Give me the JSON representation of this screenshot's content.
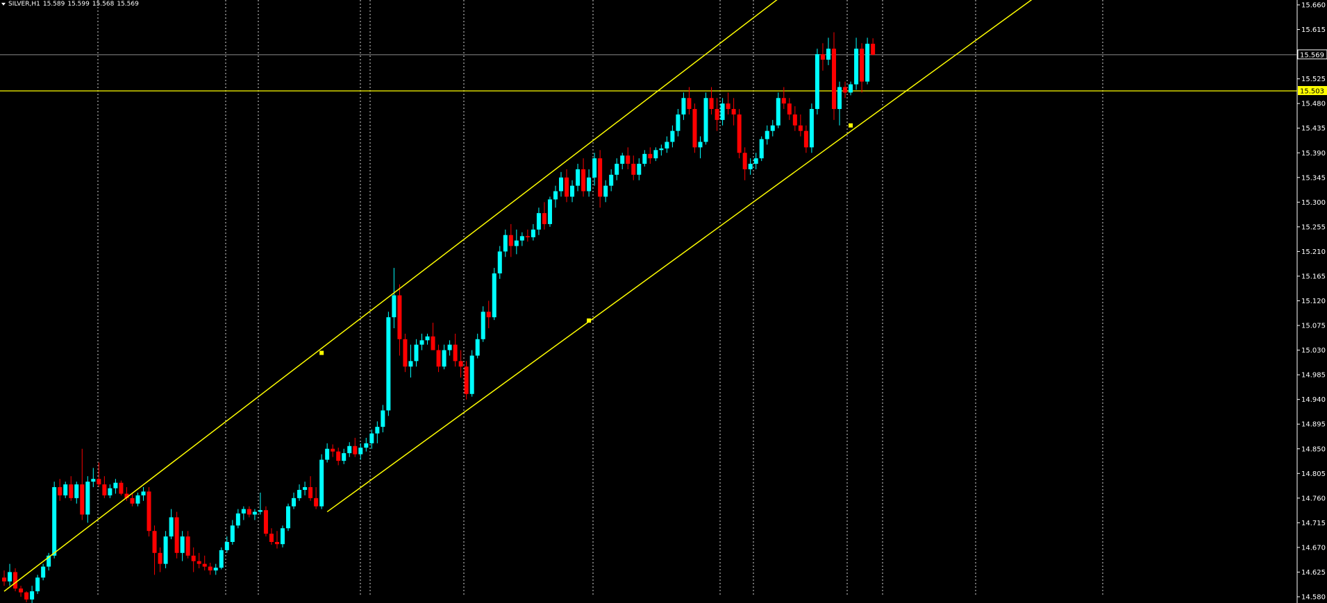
{
  "header": {
    "symbol": "SILVER,H1",
    "open": "15.589",
    "high": "15.599",
    "low": "15.568",
    "close": "15.569"
  },
  "colors": {
    "background": "#000000",
    "bull": "#00ffff",
    "bear": "#ff0000",
    "channel": "#ffff00",
    "grid": "#ffffff",
    "price_line": "#8c8c8c",
    "axis_text": "#ffffff"
  },
  "chart_data": {
    "type": "candlestick",
    "ylim": [
      14.58,
      15.66
    ],
    "y_ticks": [
      "15.660",
      "15.615",
      "15.570",
      "15.525",
      "15.480",
      "15.435",
      "15.390",
      "15.345",
      "15.300",
      "15.255",
      "15.210",
      "15.165",
      "15.120",
      "15.075",
      "15.030",
      "14.985",
      "14.940",
      "14.895",
      "14.850",
      "14.805",
      "14.760",
      "14.715",
      "14.670",
      "14.625",
      "14.580"
    ],
    "current_price": "15.569",
    "horizontal_level": "15.503",
    "candles": [
      [
        14.615,
        14.628,
        14.6,
        14.608
      ],
      [
        14.608,
        14.64,
        14.6,
        14.625
      ],
      [
        14.625,
        14.632,
        14.59,
        14.595
      ],
      [
        14.595,
        14.6,
        14.58,
        14.588
      ],
      [
        14.588,
        14.59,
        14.57,
        14.575
      ],
      [
        14.575,
        14.6,
        14.565,
        14.59
      ],
      [
        14.59,
        14.62,
        14.585,
        14.615
      ],
      [
        14.615,
        14.64,
        14.61,
        14.635
      ],
      [
        14.635,
        14.66,
        14.628,
        14.655
      ],
      [
        14.655,
        14.79,
        14.65,
        14.78
      ],
      [
        14.78,
        14.795,
        14.755,
        14.765
      ],
      [
        14.765,
        14.79,
        14.76,
        14.785
      ],
      [
        14.785,
        14.8,
        14.755,
        14.76
      ],
      [
        14.76,
        14.79,
        14.75,
        14.785
      ],
      [
        14.785,
        14.85,
        14.72,
        14.73
      ],
      [
        14.73,
        14.8,
        14.715,
        14.79
      ],
      [
        14.79,
        14.815,
        14.78,
        14.795
      ],
      [
        14.795,
        14.825,
        14.78,
        14.785
      ],
      [
        14.785,
        14.8,
        14.76,
        14.765
      ],
      [
        14.765,
        14.785,
        14.76,
        14.778
      ],
      [
        14.778,
        14.795,
        14.768,
        14.788
      ],
      [
        14.788,
        14.792,
        14.765,
        14.768
      ],
      [
        14.768,
        14.78,
        14.755,
        14.76
      ],
      [
        14.76,
        14.768,
        14.745,
        14.75
      ],
      [
        14.75,
        14.77,
        14.745,
        14.765
      ],
      [
        14.765,
        14.78,
        14.755,
        14.772
      ],
      [
        14.772,
        14.78,
        14.69,
        14.7
      ],
      [
        14.7,
        14.71,
        14.62,
        14.66
      ],
      [
        14.66,
        14.67,
        14.625,
        14.64
      ],
      [
        14.64,
        14.7,
        14.632,
        14.69
      ],
      [
        14.69,
        14.74,
        14.685,
        14.725
      ],
      [
        14.725,
        14.735,
        14.65,
        14.66
      ],
      [
        14.66,
        14.7,
        14.645,
        14.69
      ],
      [
        14.69,
        14.7,
        14.65,
        14.655
      ],
      [
        14.655,
        14.67,
        14.625,
        14.645
      ],
      [
        14.645,
        14.66,
        14.632,
        14.64
      ],
      [
        14.64,
        14.655,
        14.628,
        14.635
      ],
      [
        14.635,
        14.642,
        14.62,
        14.628
      ],
      [
        14.628,
        14.64,
        14.62,
        14.633
      ],
      [
        14.633,
        14.67,
        14.63,
        14.665
      ],
      [
        14.665,
        14.69,
        14.66,
        14.68
      ],
      [
        14.68,
        14.72,
        14.675,
        14.71
      ],
      [
        14.71,
        14.74,
        14.705,
        14.732
      ],
      [
        14.732,
        14.745,
        14.72,
        14.74
      ],
      [
        14.74,
        14.745,
        14.725,
        14.73
      ],
      [
        14.73,
        14.74,
        14.72,
        14.735
      ],
      [
        14.735,
        14.77,
        14.73,
        14.738
      ],
      [
        14.738,
        14.745,
        14.69,
        14.695
      ],
      [
        14.695,
        14.705,
        14.675,
        14.68
      ],
      [
        14.68,
        14.7,
        14.668,
        14.676
      ],
      [
        14.676,
        14.71,
        14.67,
        14.705
      ],
      [
        14.705,
        14.75,
        14.7,
        14.745
      ],
      [
        14.745,
        14.77,
        14.74,
        14.76
      ],
      [
        14.76,
        14.785,
        14.755,
        14.775
      ],
      [
        14.775,
        14.79,
        14.765,
        14.78
      ],
      [
        14.78,
        14.8,
        14.755,
        14.76
      ],
      [
        14.76,
        14.78,
        14.74,
        14.745
      ],
      [
        14.745,
        14.84,
        14.74,
        14.83
      ],
      [
        14.83,
        14.86,
        14.825,
        14.85
      ],
      [
        14.85,
        14.858,
        14.835,
        14.845
      ],
      [
        14.845,
        14.852,
        14.82,
        14.828
      ],
      [
        14.828,
        14.85,
        14.822,
        14.842
      ],
      [
        14.842,
        14.862,
        14.835,
        14.855
      ],
      [
        14.855,
        14.87,
        14.835,
        14.84
      ],
      [
        14.84,
        14.86,
        14.83,
        14.852
      ],
      [
        14.852,
        14.87,
        14.845,
        14.86
      ],
      [
        14.86,
        14.885,
        14.85,
        14.878
      ],
      [
        14.878,
        14.9,
        14.86,
        14.89
      ],
      [
        14.89,
        14.93,
        14.88,
        14.92
      ],
      [
        14.92,
        15.1,
        14.91,
        15.09
      ],
      [
        15.09,
        15.18,
        15.07,
        15.13
      ],
      [
        15.13,
        15.15,
        15.02,
        15.05
      ],
      [
        15.05,
        15.06,
        14.99,
        15.0
      ],
      [
        15.0,
        15.04,
        14.98,
        15.01
      ],
      [
        15.01,
        15.05,
        15.0,
        15.04
      ],
      [
        15.04,
        15.06,
        15.03,
        15.048
      ],
      [
        15.048,
        15.06,
        15.04,
        15.055
      ],
      [
        15.055,
        15.08,
        15.04,
        15.03
      ],
      [
        15.03,
        15.04,
        14.99,
        15.0
      ],
      [
        15.0,
        15.04,
        14.995,
        15.03
      ],
      [
        15.03,
        15.048,
        15.02,
        15.04
      ],
      [
        15.04,
        15.06,
        15.0,
        15.01
      ],
      [
        15.01,
        15.03,
        14.98,
        15.0
      ],
      [
        15.0,
        15.01,
        14.94,
        14.95
      ],
      [
        14.95,
        15.03,
        14.945,
        15.02
      ],
      [
        15.02,
        15.06,
        15.015,
        15.05
      ],
      [
        15.05,
        15.11,
        15.045,
        15.1
      ],
      [
        15.1,
        15.12,
        15.07,
        15.09
      ],
      [
        15.09,
        15.18,
        15.085,
        15.17
      ],
      [
        15.17,
        15.22,
        15.16,
        15.21
      ],
      [
        15.21,
        15.25,
        15.2,
        15.24
      ],
      [
        15.24,
        15.26,
        15.2,
        15.22
      ],
      [
        15.22,
        15.25,
        15.205,
        15.23
      ],
      [
        15.23,
        15.245,
        15.22,
        15.238
      ],
      [
        15.238,
        15.25,
        15.228,
        15.236
      ],
      [
        15.236,
        15.26,
        15.23,
        15.25
      ],
      [
        15.25,
        15.29,
        15.24,
        15.28
      ],
      [
        15.28,
        15.3,
        15.25,
        15.26
      ],
      [
        15.26,
        15.31,
        15.255,
        15.305
      ],
      [
        15.305,
        15.33,
        15.29,
        15.32
      ],
      [
        15.32,
        15.355,
        15.31,
        15.345
      ],
      [
        15.345,
        15.36,
        15.3,
        15.31
      ],
      [
        15.31,
        15.34,
        15.3,
        15.33
      ],
      [
        15.33,
        15.37,
        15.32,
        15.36
      ],
      [
        15.36,
        15.38,
        15.31,
        15.32
      ],
      [
        15.32,
        15.36,
        15.31,
        15.345
      ],
      [
        15.345,
        15.39,
        15.33,
        15.38
      ],
      [
        15.38,
        15.395,
        15.29,
        15.31
      ],
      [
        15.31,
        15.34,
        15.3,
        15.33
      ],
      [
        15.33,
        15.36,
        15.32,
        15.35
      ],
      [
        15.35,
        15.38,
        15.34,
        15.37
      ],
      [
        15.37,
        15.39,
        15.36,
        15.385
      ],
      [
        15.385,
        15.4,
        15.36,
        15.37
      ],
      [
        15.37,
        15.385,
        15.34,
        15.35
      ],
      [
        15.35,
        15.38,
        15.34,
        15.37
      ],
      [
        15.37,
        15.395,
        15.365,
        15.388
      ],
      [
        15.388,
        15.4,
        15.37,
        15.38
      ],
      [
        15.38,
        15.4,
        15.375,
        15.395
      ],
      [
        15.395,
        15.405,
        15.385,
        15.398
      ],
      [
        15.398,
        15.42,
        15.39,
        15.41
      ],
      [
        15.41,
        15.44,
        15.4,
        15.43
      ],
      [
        15.43,
        15.47,
        15.42,
        15.46
      ],
      [
        15.46,
        15.5,
        15.45,
        15.49
      ],
      [
        15.49,
        15.51,
        15.46,
        15.47
      ],
      [
        15.47,
        15.48,
        15.39,
        15.4
      ],
      [
        15.4,
        15.42,
        15.38,
        15.41
      ],
      [
        15.41,
        15.5,
        15.405,
        15.49
      ],
      [
        15.49,
        15.51,
        15.46,
        15.47
      ],
      [
        15.47,
        15.49,
        15.43,
        15.45
      ],
      [
        15.45,
        15.49,
        15.44,
        15.48
      ],
      [
        15.48,
        15.5,
        15.46,
        15.47
      ],
      [
        15.47,
        15.49,
        15.44,
        15.46
      ],
      [
        15.46,
        15.47,
        15.38,
        15.39
      ],
      [
        15.39,
        15.4,
        15.34,
        15.36
      ],
      [
        15.36,
        15.38,
        15.35,
        15.37
      ],
      [
        15.37,
        15.39,
        15.36,
        15.38
      ],
      [
        15.38,
        15.42,
        15.375,
        15.415
      ],
      [
        15.415,
        15.44,
        15.405,
        15.43
      ],
      [
        15.43,
        15.45,
        15.42,
        15.44
      ],
      [
        15.44,
        15.5,
        15.435,
        15.49
      ],
      [
        15.49,
        15.51,
        15.47,
        15.48
      ],
      [
        15.48,
        15.49,
        15.45,
        15.46
      ],
      [
        15.46,
        15.475,
        15.43,
        15.44
      ],
      [
        15.44,
        15.46,
        15.42,
        15.43
      ],
      [
        15.43,
        15.44,
        15.39,
        15.4
      ],
      [
        15.4,
        15.48,
        15.39,
        15.47
      ],
      [
        15.47,
        15.58,
        15.46,
        15.57
      ],
      [
        15.57,
        15.59,
        15.54,
        15.56
      ],
      [
        15.56,
        15.6,
        15.55,
        15.58
      ],
      [
        15.58,
        15.61,
        15.45,
        15.47
      ],
      [
        15.47,
        15.52,
        15.44,
        15.51
      ],
      [
        15.51,
        15.52,
        15.49,
        15.5
      ],
      [
        15.5,
        15.52,
        15.495,
        15.515
      ],
      [
        15.515,
        15.6,
        15.505,
        15.58
      ],
      [
        15.58,
        15.59,
        15.5,
        15.52
      ],
      [
        15.52,
        15.6,
        15.515,
        15.589
      ],
      [
        15.589,
        15.599,
        15.568,
        15.569
      ]
    ],
    "channel": {
      "upper": [
        [
          0,
          14.59
        ],
        [
          144,
          15.71
        ]
      ],
      "lower": [
        [
          58,
          14.735
        ],
        [
          190,
          15.71
        ]
      ],
      "anchors": [
        [
          57,
          15.025
        ],
        [
          105,
          15.084
        ],
        [
          152,
          15.44
        ]
      ]
    }
  }
}
